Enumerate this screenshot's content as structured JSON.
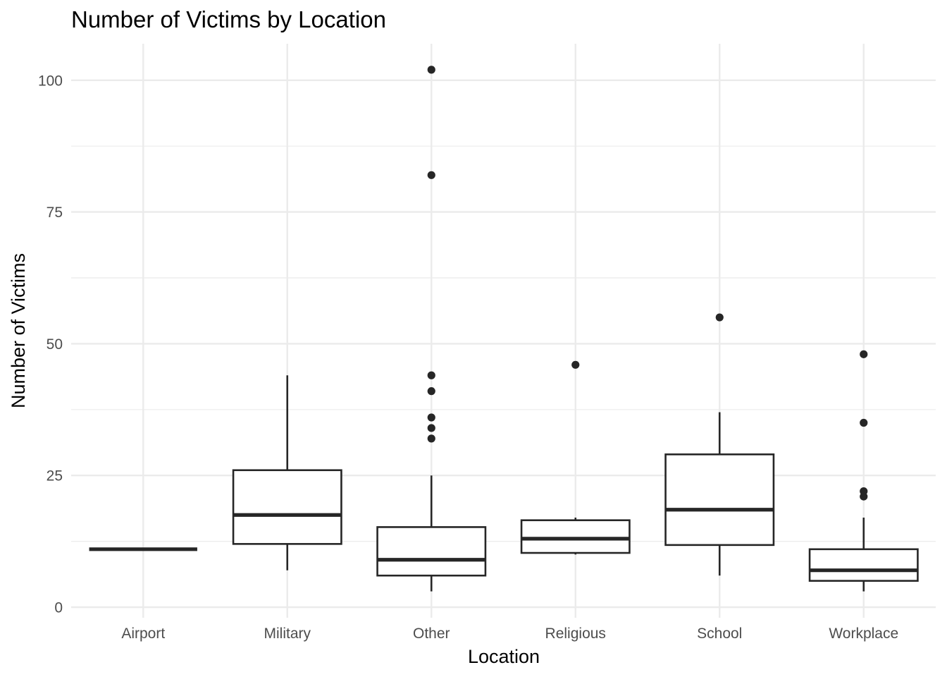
{
  "chart_data": {
    "type": "boxplot",
    "title": "Number of Victims by Location",
    "xlabel": "Location",
    "ylabel": "Number of Victims",
    "ylim": [
      0,
      107
    ],
    "yticks": [
      0,
      25,
      50,
      75,
      100
    ],
    "grid": true,
    "categories": [
      "Airport",
      "Military",
      "Other",
      "Religious",
      "School",
      "Workplace"
    ],
    "boxes": [
      {
        "category": "Airport",
        "min": 11,
        "q1": 11,
        "median": 11,
        "q3": 11,
        "max": 11,
        "outliers": []
      },
      {
        "category": "Military",
        "min": 7,
        "q1": 12,
        "median": 17.5,
        "q3": 26,
        "max": 44,
        "outliers": []
      },
      {
        "category": "Other",
        "min": 3,
        "q1": 6,
        "median": 9,
        "q3": 15.2,
        "max": 25,
        "outliers": [
          32,
          34,
          36,
          41,
          44,
          82,
          102
        ]
      },
      {
        "category": "Religious",
        "min": 10,
        "q1": 10.3,
        "median": 13,
        "q3": 16.5,
        "max": 17,
        "outliers": [
          46
        ]
      },
      {
        "category": "School",
        "min": 6,
        "q1": 11.8,
        "median": 18.5,
        "q3": 29,
        "max": 37,
        "outliers": [
          55
        ]
      },
      {
        "category": "Workplace",
        "min": 3,
        "q1": 5,
        "median": 7,
        "q3": 11,
        "max": 17,
        "outliers": [
          21,
          22,
          35,
          48
        ]
      }
    ]
  }
}
